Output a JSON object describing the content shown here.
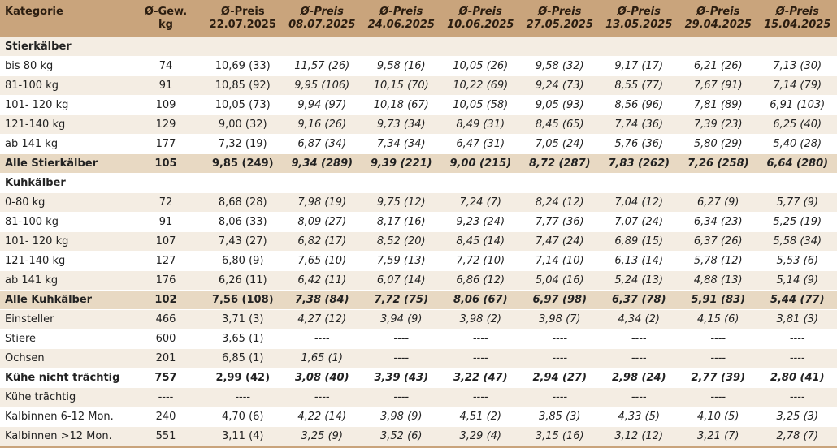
{
  "table": {
    "header": [
      [
        "Kategorie"
      ],
      [
        "Ø-Gew.",
        "kg"
      ],
      [
        "Ø-Preis",
        "22.07.2025"
      ],
      [
        "Ø-Preis",
        "08.07.2025"
      ],
      [
        "Ø-Preis",
        "24.06.2025"
      ],
      [
        "Ø-Preis",
        "10.06.2025"
      ],
      [
        "Ø-Preis",
        "27.05.2025"
      ],
      [
        "Ø-Preis",
        "13.05.2025"
      ],
      [
        "Ø-Preis",
        "29.04.2025"
      ],
      [
        "Ø-Preis",
        "15.04.2025"
      ]
    ],
    "rows": [
      [
        "Stierkälber"
      ],
      [
        "bis 80 kg",
        "74",
        "10,69 (33)",
        "11,57 (26)",
        "9,58 (16)",
        "10,05 (26)",
        "9,58 (32)",
        "9,17 (17)",
        "6,21 (26)",
        "7,13 (30)"
      ],
      [
        "81-100 kg",
        "91",
        "10,85 (92)",
        "9,95 (106)",
        "10,15 (70)",
        "10,22 (69)",
        "9,24 (73)",
        "8,55 (77)",
        "7,67 (91)",
        "7,14 (79)"
      ],
      [
        "101- 120 kg",
        "109",
        "10,05 (73)",
        "9,94 (97)",
        "10,18 (67)",
        "10,05 (58)",
        "9,05 (93)",
        "8,56 (96)",
        "7,81 (89)",
        "6,91 (103)"
      ],
      [
        "121-140 kg",
        "129",
        "9,00 (32)",
        "9,16 (26)",
        "9,73 (34)",
        "8,49 (31)",
        "8,45 (65)",
        "7,74 (36)",
        "7,39 (23)",
        "6,25 (40)"
      ],
      [
        "ab 141 kg",
        "177",
        "7,32 (19)",
        "6,87 (34)",
        "7,34 (34)",
        "6,47 (31)",
        "7,05 (24)",
        "5,76 (36)",
        "5,80 (29)",
        "5,40 (28)"
      ],
      [
        "Alle Stierkälber",
        "105",
        "9,85 (249)",
        "9,34 (289)",
        "9,39 (221)",
        "9,00 (215)",
        "8,72 (287)",
        "7,83 (262)",
        "7,26 (258)",
        "6,64 (280)"
      ],
      [
        "Kuhkälber"
      ],
      [
        "0-80 kg",
        "72",
        "8,68 (28)",
        "7,98 (19)",
        "9,75 (12)",
        "7,24 (7)",
        "8,24 (12)",
        "7,04 (12)",
        "6,27 (9)",
        "5,77 (9)"
      ],
      [
        "81-100 kg",
        "91",
        "8,06 (33)",
        "8,09 (27)",
        "8,17 (16)",
        "9,23 (24)",
        "7,77 (36)",
        "7,07 (24)",
        "6,34 (23)",
        "5,25 (19)"
      ],
      [
        "101- 120 kg",
        "107",
        "7,43 (27)",
        "6,82 (17)",
        "8,52 (20)",
        "8,45 (14)",
        "7,47 (24)",
        "6,89 (15)",
        "6,37 (26)",
        "5,58 (34)"
      ],
      [
        "121-140 kg",
        "127",
        "6,80 (9)",
        "7,65 (10)",
        "7,59 (13)",
        "7,72 (10)",
        "7,14 (10)",
        "6,13 (14)",
        "5,78 (12)",
        "5,53 (6)"
      ],
      [
        "ab 141 kg",
        "176",
        "6,26 (11)",
        "6,42 (11)",
        "6,07 (14)",
        "6,86 (12)",
        "5,04 (16)",
        "5,24 (13)",
        "4,88 (13)",
        "5,14 (9)"
      ],
      [
        "Alle Kuhkälber",
        "102",
        "7,56 (108)",
        "7,38 (84)",
        "7,72 (75)",
        "8,06 (67)",
        "6,97 (98)",
        "6,37 (78)",
        "5,91 (83)",
        "5,44 (77)"
      ],
      [
        "Einsteller",
        "466",
        "3,71 (3)",
        "4,27 (12)",
        "3,94 (9)",
        "3,98 (2)",
        "3,98 (7)",
        "4,34 (2)",
        "4,15 (6)",
        "3,81 (3)"
      ],
      [
        "Stiere",
        "600",
        "3,65 (1)",
        "----",
        "----",
        "----",
        "----",
        "----",
        "----",
        "----"
      ],
      [
        "Ochsen",
        "201",
        "6,85 (1)",
        "1,65 (1)",
        "----",
        "----",
        "----",
        "----",
        "----",
        "----"
      ],
      [
        "Kühe nicht trächtig",
        "757",
        "2,99 (42)",
        "3,08 (40)",
        "3,39 (43)",
        "3,22 (47)",
        "2,94 (27)",
        "2,98 (24)",
        "2,77 (39)",
        "2,80 (41)"
      ],
      [
        "Kühe trächtig",
        "----",
        "----",
        "----",
        "----",
        "----",
        "----",
        "----",
        "----",
        "----"
      ],
      [
        "Kalbinnen 6-12 Mon.",
        "240",
        "4,70 (6)",
        "4,22 (14)",
        "3,98 (9)",
        "4,51 (2)",
        "3,85 (3)",
        "4,33 (5)",
        "4,10 (5)",
        "3,25 (3)"
      ],
      [
        "Kalbinnen >12 Mon.",
        "551",
        "3,11 (4)",
        "3,25 (9)",
        "3,52 (6)",
        "3,29 (4)",
        "3,15 (16)",
        "3,12 (12)",
        "3,21 (7)",
        "2,78 (7)"
      ]
    ]
  }
}
